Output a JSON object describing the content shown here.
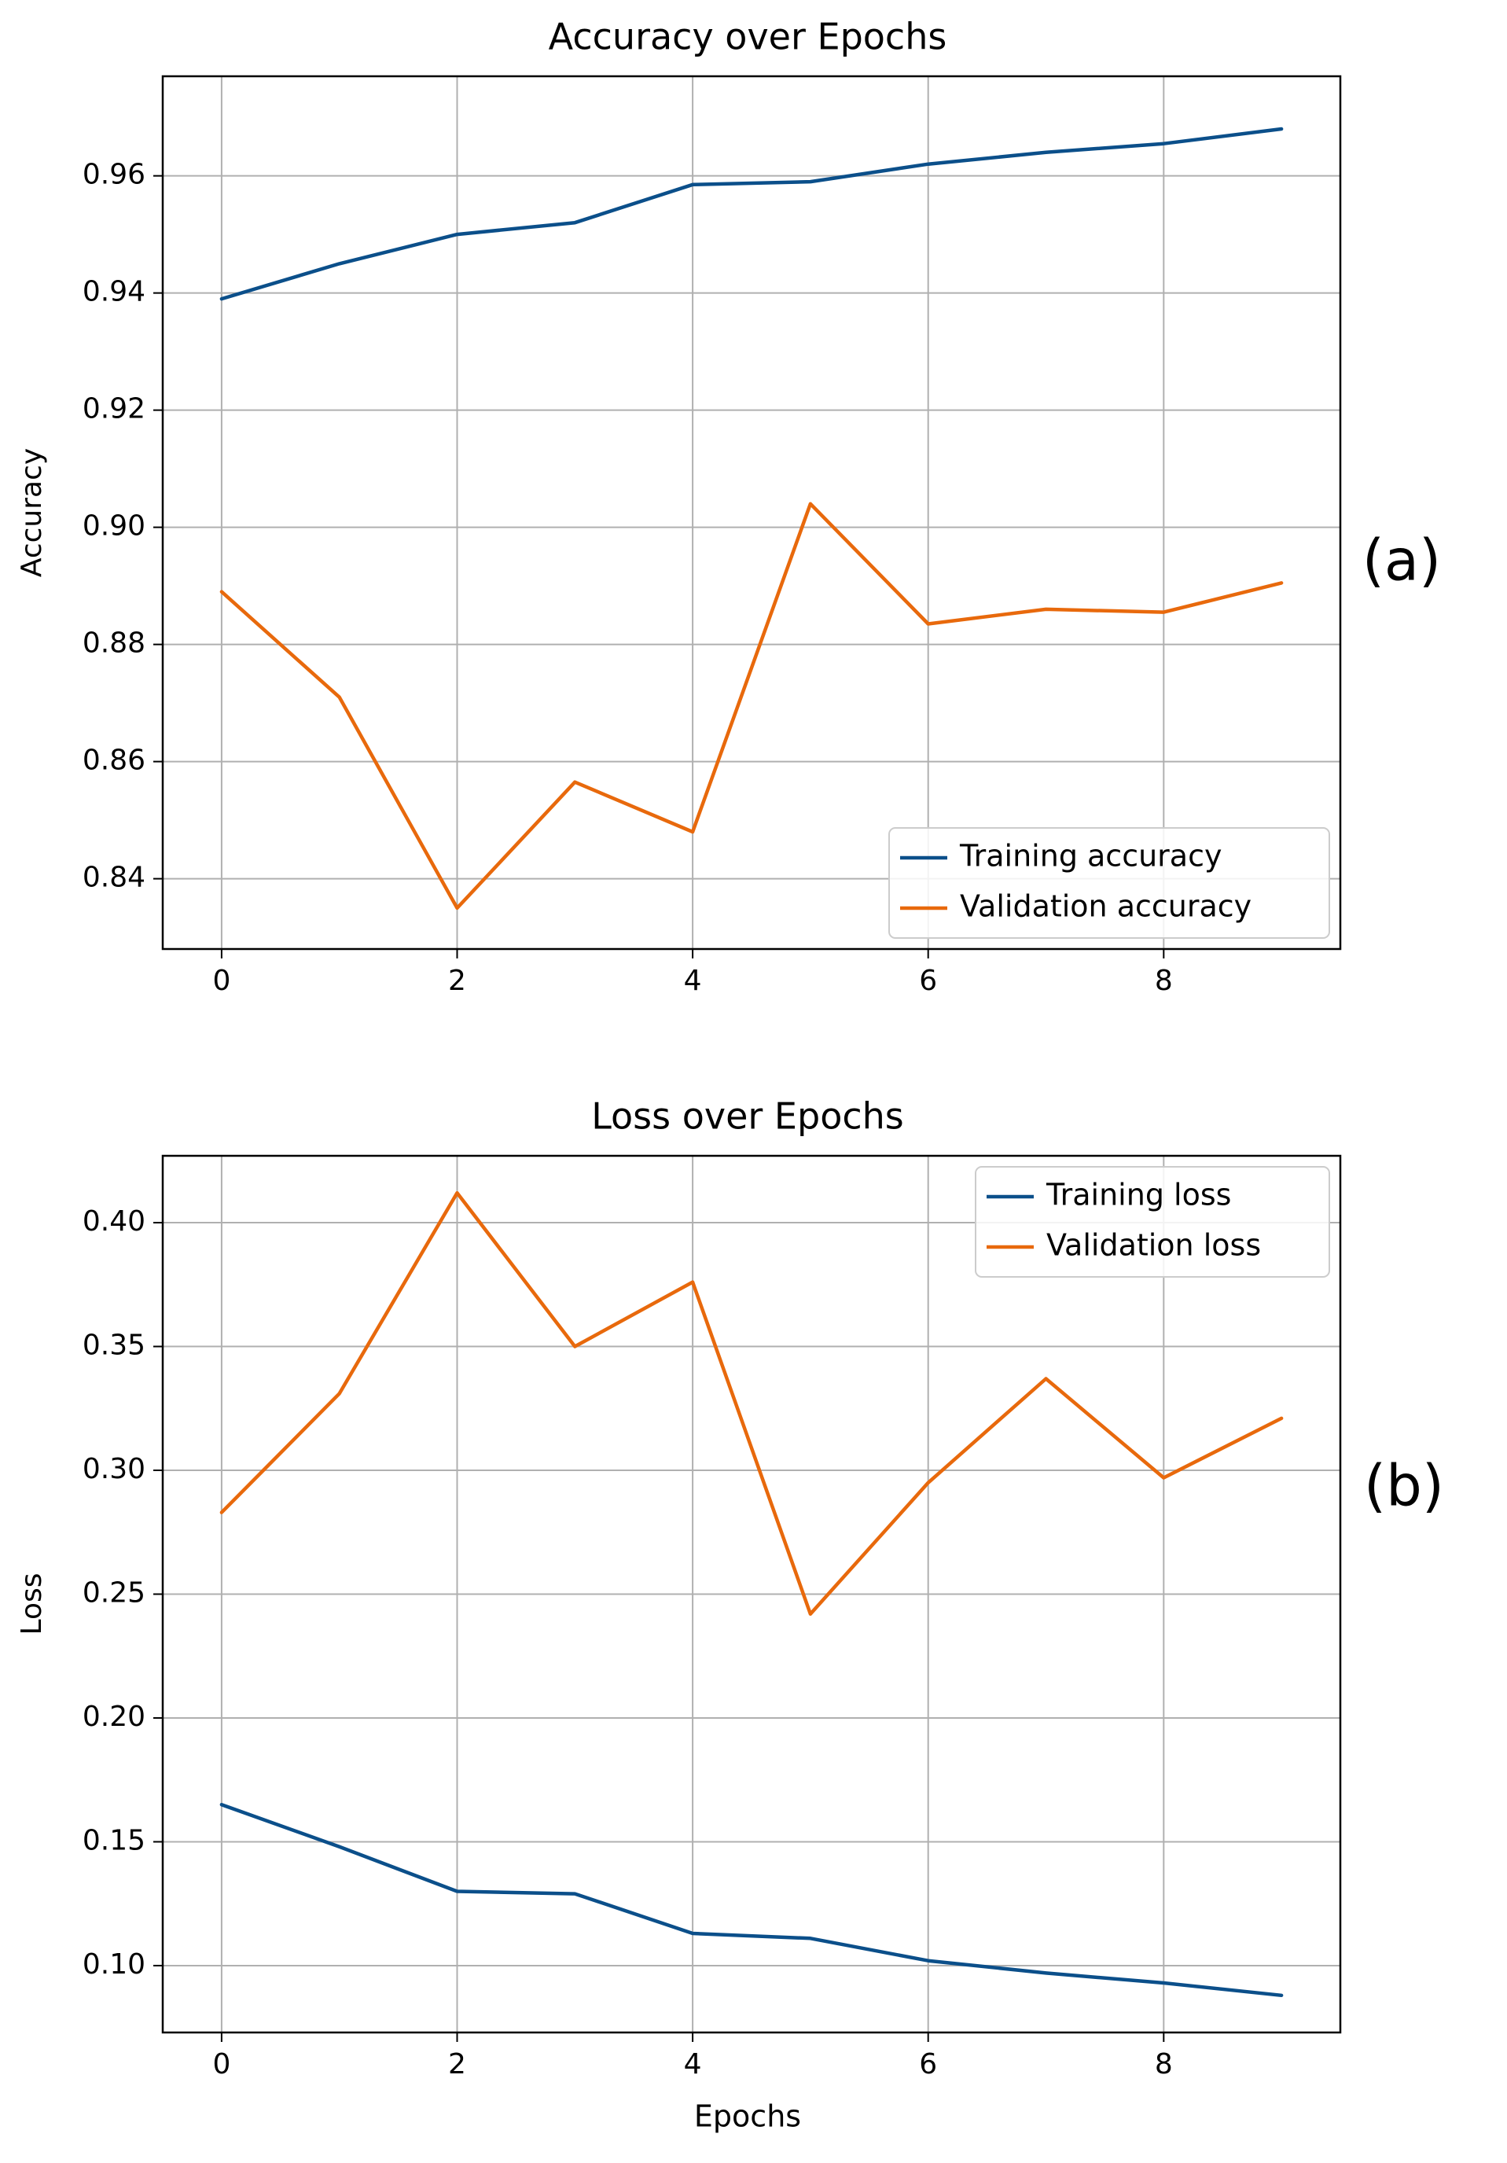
{
  "chart_data": [
    {
      "type": "line",
      "panel_label": "(a)",
      "title": "Accuracy over Epochs",
      "xlabel": "",
      "ylabel": "Accuracy",
      "xlim": [
        -0.5,
        9.5
      ],
      "ylim": [
        0.828,
        0.977
      ],
      "xticks": [
        0,
        2,
        4,
        6,
        8
      ],
      "yticks": [
        0.84,
        0.86,
        0.88,
        0.9,
        0.92,
        0.94,
        0.96
      ],
      "ytick_labels": [
        "0.84",
        "0.86",
        "0.88",
        "0.90",
        "0.92",
        "0.94",
        "0.96"
      ],
      "grid": true,
      "legend_position": "lower-right",
      "x": [
        0,
        1,
        2,
        3,
        4,
        5,
        6,
        7,
        8,
        9
      ],
      "series": [
        {
          "name": "Training accuracy",
          "color": "#0b4f8a",
          "values": [
            0.939,
            0.945,
            0.95,
            0.952,
            0.9585,
            0.959,
            0.962,
            0.964,
            0.9655,
            0.968
          ]
        },
        {
          "name": "Validation accuracy",
          "color": "#e8690c",
          "values": [
            0.889,
            0.871,
            0.835,
            0.8565,
            0.848,
            0.904,
            0.8835,
            0.886,
            0.8855,
            0.8905
          ]
        }
      ]
    },
    {
      "type": "line",
      "panel_label": "(b)",
      "title": "Loss over Epochs",
      "xlabel": "Epochs",
      "ylabel": "Loss",
      "xlim": [
        -0.5,
        9.5
      ],
      "ylim": [
        0.073,
        0.427
      ],
      "xticks": [
        0,
        2,
        4,
        6,
        8
      ],
      "yticks": [
        0.1,
        0.15,
        0.2,
        0.25,
        0.3,
        0.35,
        0.4
      ],
      "ytick_labels": [
        "0.10",
        "0.15",
        "0.20",
        "0.25",
        "0.30",
        "0.35",
        "0.40"
      ],
      "grid": true,
      "legend_position": "upper-right",
      "x": [
        0,
        1,
        2,
        3,
        4,
        5,
        6,
        7,
        8,
        9
      ],
      "series": [
        {
          "name": "Training loss",
          "color": "#0b4f8a",
          "values": [
            0.165,
            0.148,
            0.13,
            0.129,
            0.113,
            0.111,
            0.102,
            0.097,
            0.093,
            0.088
          ]
        },
        {
          "name": "Validation loss",
          "color": "#e8690c",
          "values": [
            0.283,
            0.331,
            0.412,
            0.35,
            0.376,
            0.242,
            0.295,
            0.337,
            0.297,
            0.321
          ]
        }
      ]
    }
  ]
}
